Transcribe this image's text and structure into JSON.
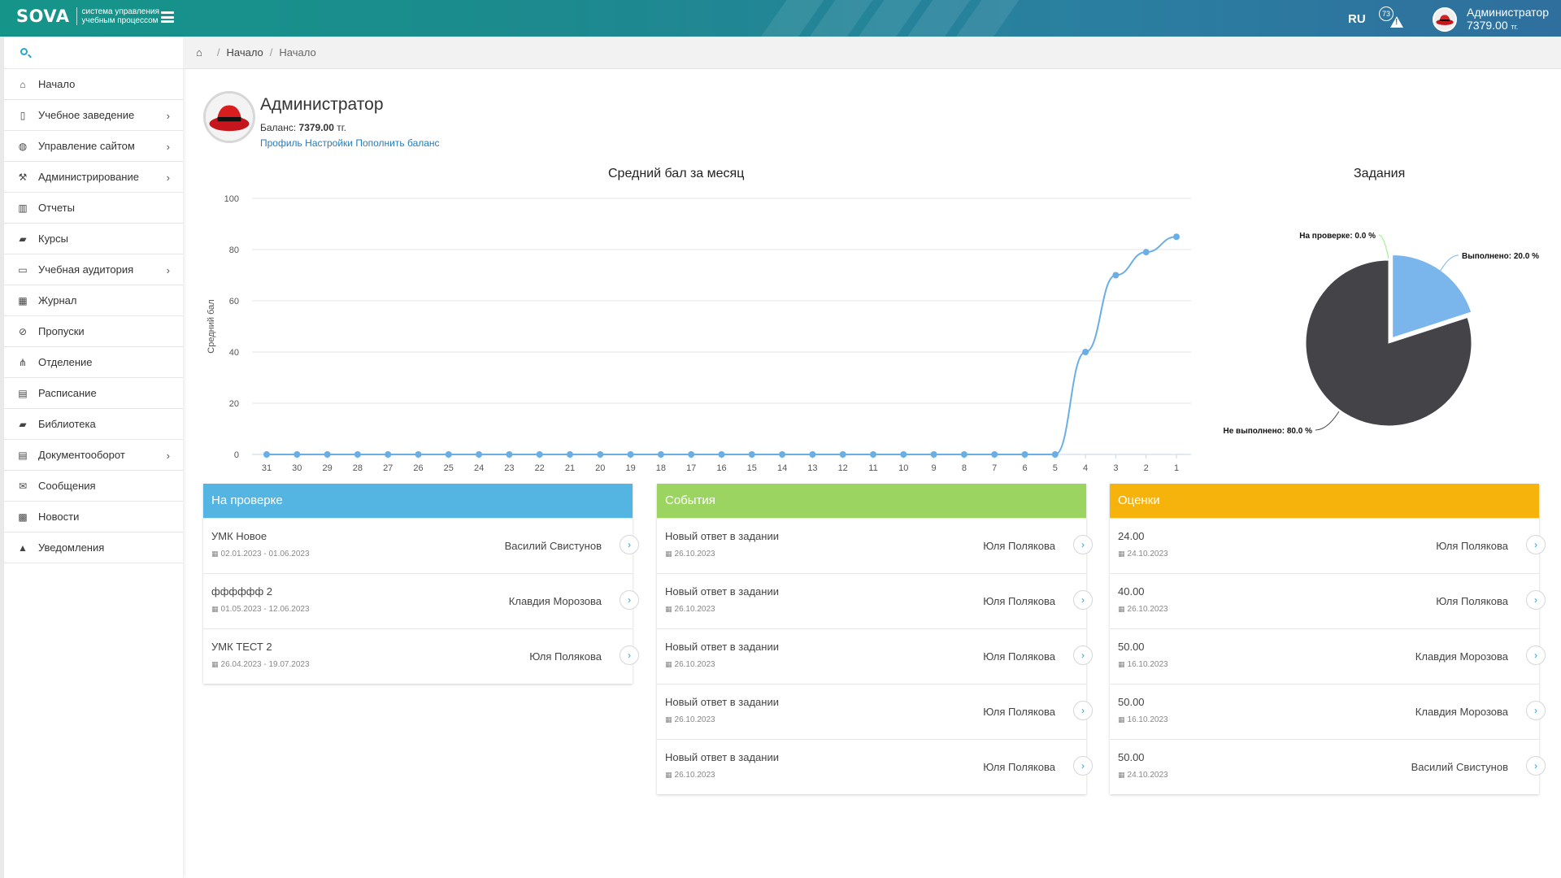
{
  "header": {
    "logo_word": "SOVA",
    "logo_sub": "система управления учебным процессом",
    "lang": "RU",
    "notif_count": "73",
    "user_name": "Администратор",
    "user_balance": "7379.00",
    "user_currency": "тг."
  },
  "sidebar": {
    "search_placeholder": "",
    "items": [
      {
        "label": "Начало",
        "icon": "home-icon",
        "glyph": "⌂",
        "submenu": false
      },
      {
        "label": "Учебное заведение",
        "icon": "building-icon",
        "glyph": "▯",
        "submenu": true
      },
      {
        "label": "Управление сайтом",
        "icon": "globe-icon",
        "glyph": "◍",
        "submenu": true
      },
      {
        "label": "Администрирование",
        "icon": "gavel-icon",
        "glyph": "⚒",
        "submenu": true
      },
      {
        "label": "Отчеты",
        "icon": "bar-chart-icon",
        "glyph": "▥",
        "submenu": false
      },
      {
        "label": "Курсы",
        "icon": "book-icon",
        "glyph": "▰",
        "submenu": false
      },
      {
        "label": "Учебная аудитория",
        "icon": "desktop-icon",
        "glyph": "▭",
        "submenu": true
      },
      {
        "label": "Журнал",
        "icon": "table-icon",
        "glyph": "▦",
        "submenu": false
      },
      {
        "label": "Пропуски",
        "icon": "ban-icon",
        "glyph": "⊘",
        "submenu": false
      },
      {
        "label": "Отделение",
        "icon": "sitemap-icon",
        "glyph": "⋔",
        "submenu": false
      },
      {
        "label": "Расписание",
        "icon": "calendar-book-icon",
        "glyph": "▤",
        "submenu": false
      },
      {
        "label": "Библиотека",
        "icon": "library-book-icon",
        "glyph": "▰",
        "submenu": false
      },
      {
        "label": "Документооборот",
        "icon": "file-icon",
        "glyph": "▤",
        "submenu": true
      },
      {
        "label": "Сообщения",
        "icon": "envelope-icon",
        "glyph": "✉",
        "submenu": false
      },
      {
        "label": "Новости",
        "icon": "newspaper-icon",
        "glyph": "▩",
        "submenu": false
      },
      {
        "label": "Уведомления",
        "icon": "warning-icon",
        "glyph": "▲",
        "submenu": false
      }
    ]
  },
  "breadcrumb": [
    "Начало",
    "Начало"
  ],
  "profile": {
    "name": "Администратор",
    "balance_label": "Баланс:",
    "balance_value": "7379.00",
    "balance_currency": "тг.",
    "link_profile": "Профиль",
    "link_settings": "Настройки",
    "link_topup": "Пополнить баланс"
  },
  "chart_data": [
    {
      "type": "line",
      "title": "Средний бал за месяц",
      "ylabel": "Средний бал",
      "xlabel": "",
      "ylim": [
        0,
        100
      ],
      "yticks": [
        0,
        20,
        40,
        60,
        80,
        100
      ],
      "grid": true,
      "color": "#6aaee6",
      "categories": [
        "31",
        "30",
        "29",
        "28",
        "27",
        "26",
        "25",
        "24",
        "23",
        "22",
        "21",
        "20",
        "19",
        "18",
        "17",
        "16",
        "15",
        "14",
        "13",
        "12",
        "11",
        "10",
        "9",
        "8",
        "7",
        "6",
        "5",
        "4",
        "3",
        "2",
        "1"
      ],
      "values": [
        0,
        0,
        0,
        0,
        0,
        0,
        0,
        0,
        0,
        0,
        0,
        0,
        0,
        0,
        0,
        0,
        0,
        0,
        0,
        0,
        0,
        0,
        0,
        0,
        0,
        0,
        0,
        40,
        70,
        79,
        85
      ]
    },
    {
      "type": "pie",
      "title": "Задания",
      "slices": [
        {
          "label": "Выполнено: 20.0 %",
          "value": 20.0,
          "color": "#7ab6ec"
        },
        {
          "label": "Не выполнено: 80.0 %",
          "value": 80.0,
          "color": "#434348"
        },
        {
          "label": "На проверке: 0.0 %",
          "value": 0.0,
          "color": "#90ed7d"
        }
      ]
    }
  ],
  "cards": {
    "review": {
      "title": "На проверке",
      "color": "#54b5e3",
      "rows": [
        {
          "title": "УМК Новое",
          "date": "02.01.2023 - 01.06.2023",
          "who": "Василий Свистунов"
        },
        {
          "title": "фффффф 2",
          "date": "01.05.2023 - 12.06.2023",
          "who": "Клавдия Морозова"
        },
        {
          "title": "УМК ТЕСТ 2",
          "date": "26.04.2023 - 19.07.2023",
          "who": "Юля Полякова"
        }
      ]
    },
    "events": {
      "title": "События",
      "color": "#9cd461",
      "rows": [
        {
          "title": "Новый ответ в задании",
          "date": "26.10.2023",
          "who": "Юля Полякова"
        },
        {
          "title": "Новый ответ в задании",
          "date": "26.10.2023",
          "who": "Юля Полякова"
        },
        {
          "title": "Новый ответ в задании",
          "date": "26.10.2023",
          "who": "Юля Полякова"
        },
        {
          "title": "Новый ответ в задании",
          "date": "26.10.2023",
          "who": "Юля Полякова"
        },
        {
          "title": "Новый ответ в задании",
          "date": "26.10.2023",
          "who": "Юля Полякова"
        }
      ]
    },
    "grades": {
      "title": "Оценки",
      "color": "#f5b30b",
      "rows": [
        {
          "title": "24.00",
          "date": "24.10.2023",
          "who": "Юля Полякова"
        },
        {
          "title": "40.00",
          "date": "26.10.2023",
          "who": "Юля Полякова"
        },
        {
          "title": "50.00",
          "date": "16.10.2023",
          "who": "Клавдия Морозова"
        },
        {
          "title": "50.00",
          "date": "16.10.2023",
          "who": "Клавдия Морозова"
        },
        {
          "title": "50.00",
          "date": "24.10.2023",
          "who": "Василий Свистунов"
        }
      ]
    }
  }
}
